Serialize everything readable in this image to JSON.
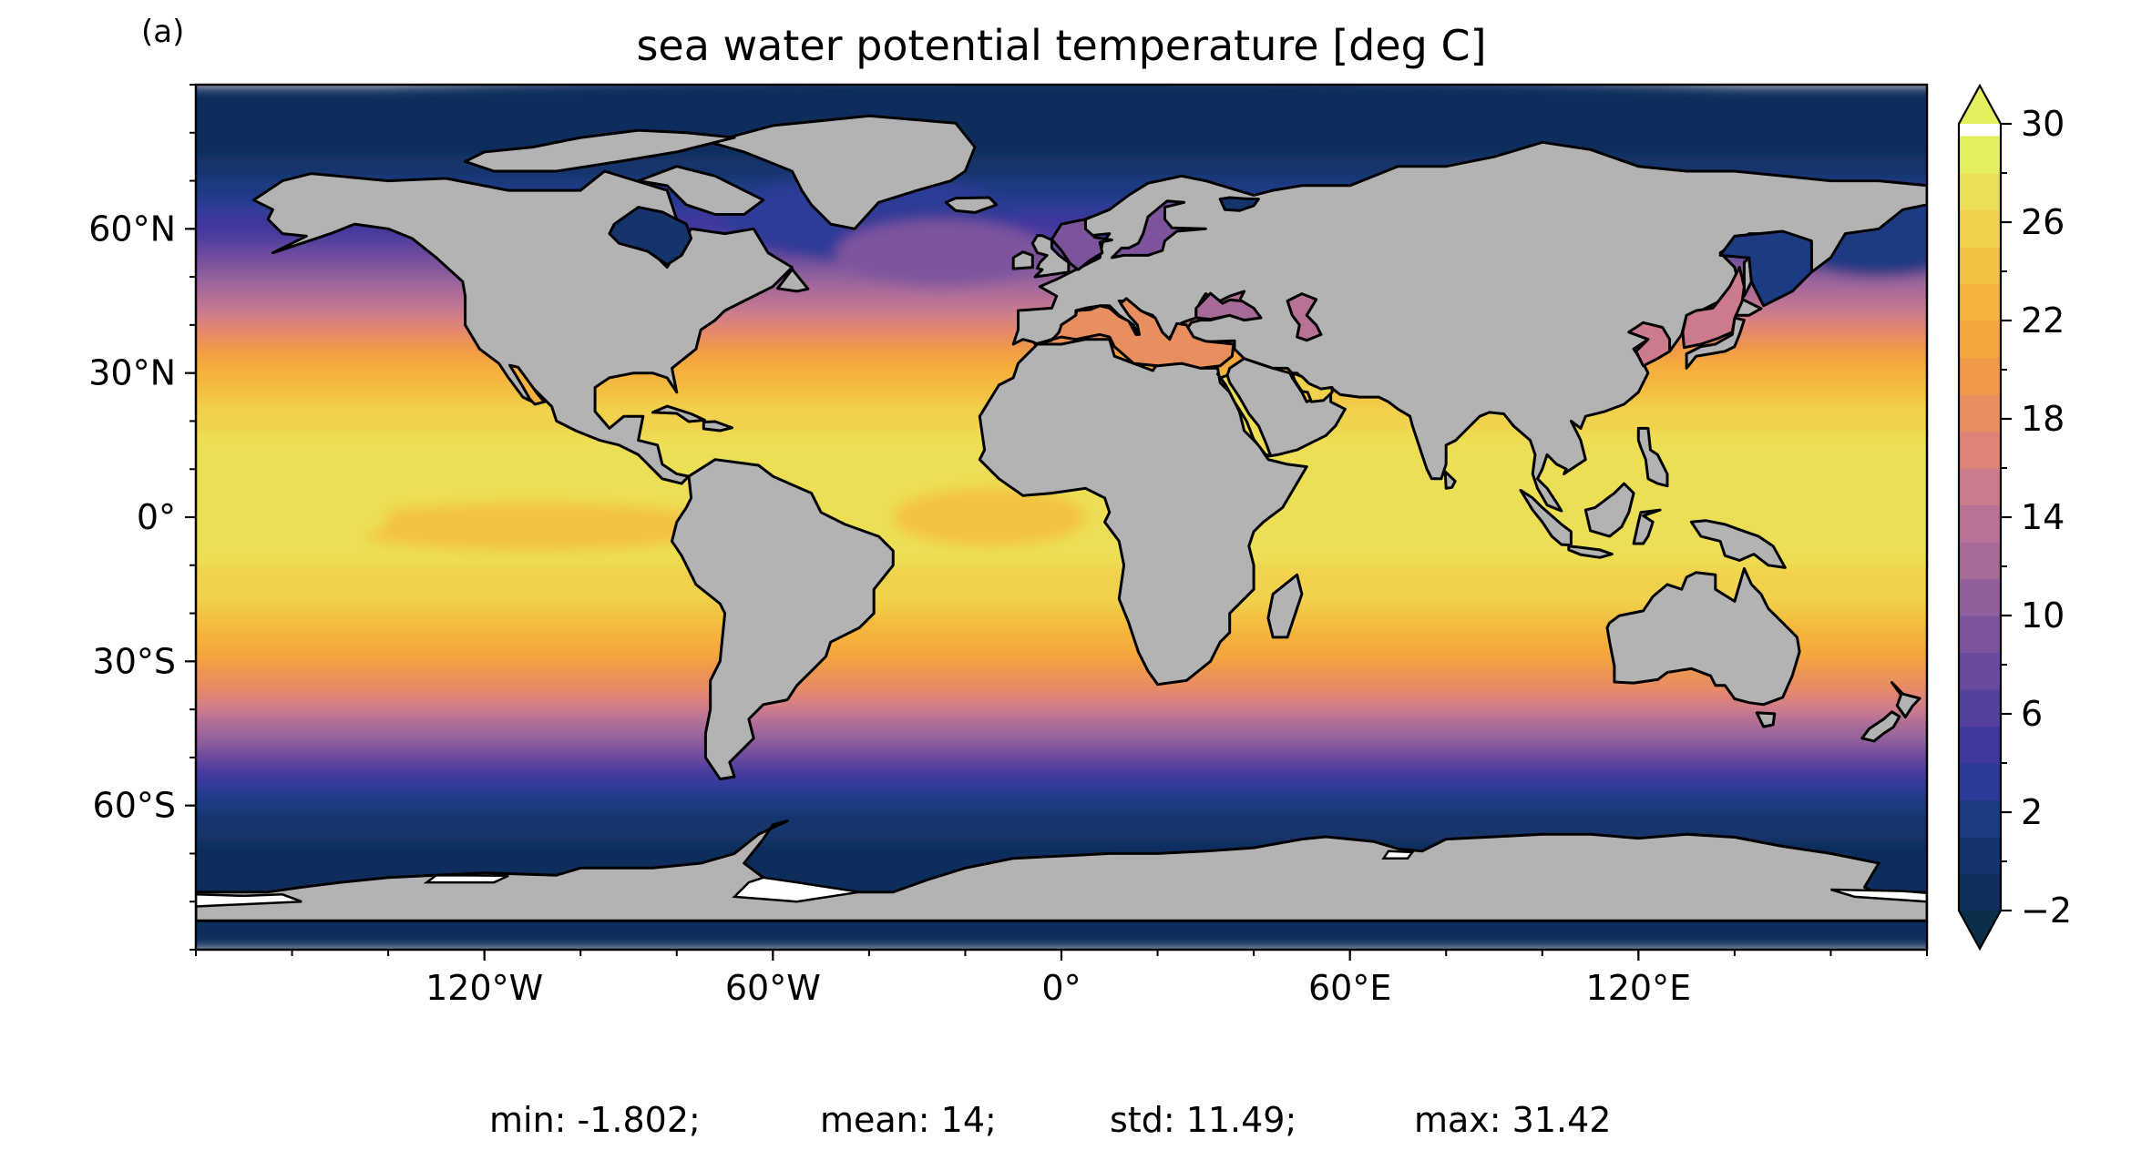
{
  "panel_label": "(a)",
  "title": "sea water potential temperature [deg C]",
  "colors": {
    "land": "#b3b3b3",
    "coast": "#000000",
    "ice_gap": "#ffffff",
    "colormap": [
      "#0b2e4b",
      "#112f5c",
      "#15346c",
      "#1d3b83",
      "#2e3a97",
      "#40389d",
      "#55409e",
      "#6a4a9e",
      "#7d549c",
      "#91609c",
      "#a66a99",
      "#b87295",
      "#cc7b8d",
      "#de8377",
      "#e98e5f",
      "#f09a47",
      "#f4a73c",
      "#f5b33d",
      "#f3c243",
      "#f1d24d",
      "#eddf55",
      "#e6f05f"
    ]
  },
  "chart_data": {
    "type": "map",
    "projection": "PlateCarree",
    "variable": "sea water potential temperature",
    "units": "deg C",
    "extent": {
      "lon": [
        -180,
        180
      ],
      "lat": [
        -90,
        90
      ]
    },
    "x_ticks": [
      {
        "lon": -120,
        "label": "120°W"
      },
      {
        "lon": -60,
        "label": "60°W"
      },
      {
        "lon": 0,
        "label": "0°"
      },
      {
        "lon": 60,
        "label": "60°E"
      },
      {
        "lon": 120,
        "label": "120°E"
      }
    ],
    "y_ticks": [
      {
        "lat": 60,
        "label": "60°N"
      },
      {
        "lat": 30,
        "label": "30°N"
      },
      {
        "lat": 0,
        "label": "0°"
      },
      {
        "lat": -30,
        "label": "30°S"
      },
      {
        "lat": -60,
        "label": "60°S"
      }
    ],
    "colorbar": {
      "min": -2,
      "max": 30,
      "step": 1.5,
      "extend": "both",
      "ticks": [
        {
          "value": 30,
          "label": "30"
        },
        {
          "value": 26,
          "label": "26"
        },
        {
          "value": 22,
          "label": "22"
        },
        {
          "value": 18,
          "label": "18"
        },
        {
          "value": 14,
          "label": "14"
        },
        {
          "value": 10,
          "label": "10"
        },
        {
          "value": 6,
          "label": "6"
        },
        {
          "value": 2,
          "label": "2"
        },
        {
          "value": -2,
          "label": "−2"
        }
      ]
    },
    "stats": {
      "min": "min: -1.802;",
      "mean": "mean: 14;",
      "std": "std: 11.49;",
      "max": "max: 31.42"
    }
  }
}
